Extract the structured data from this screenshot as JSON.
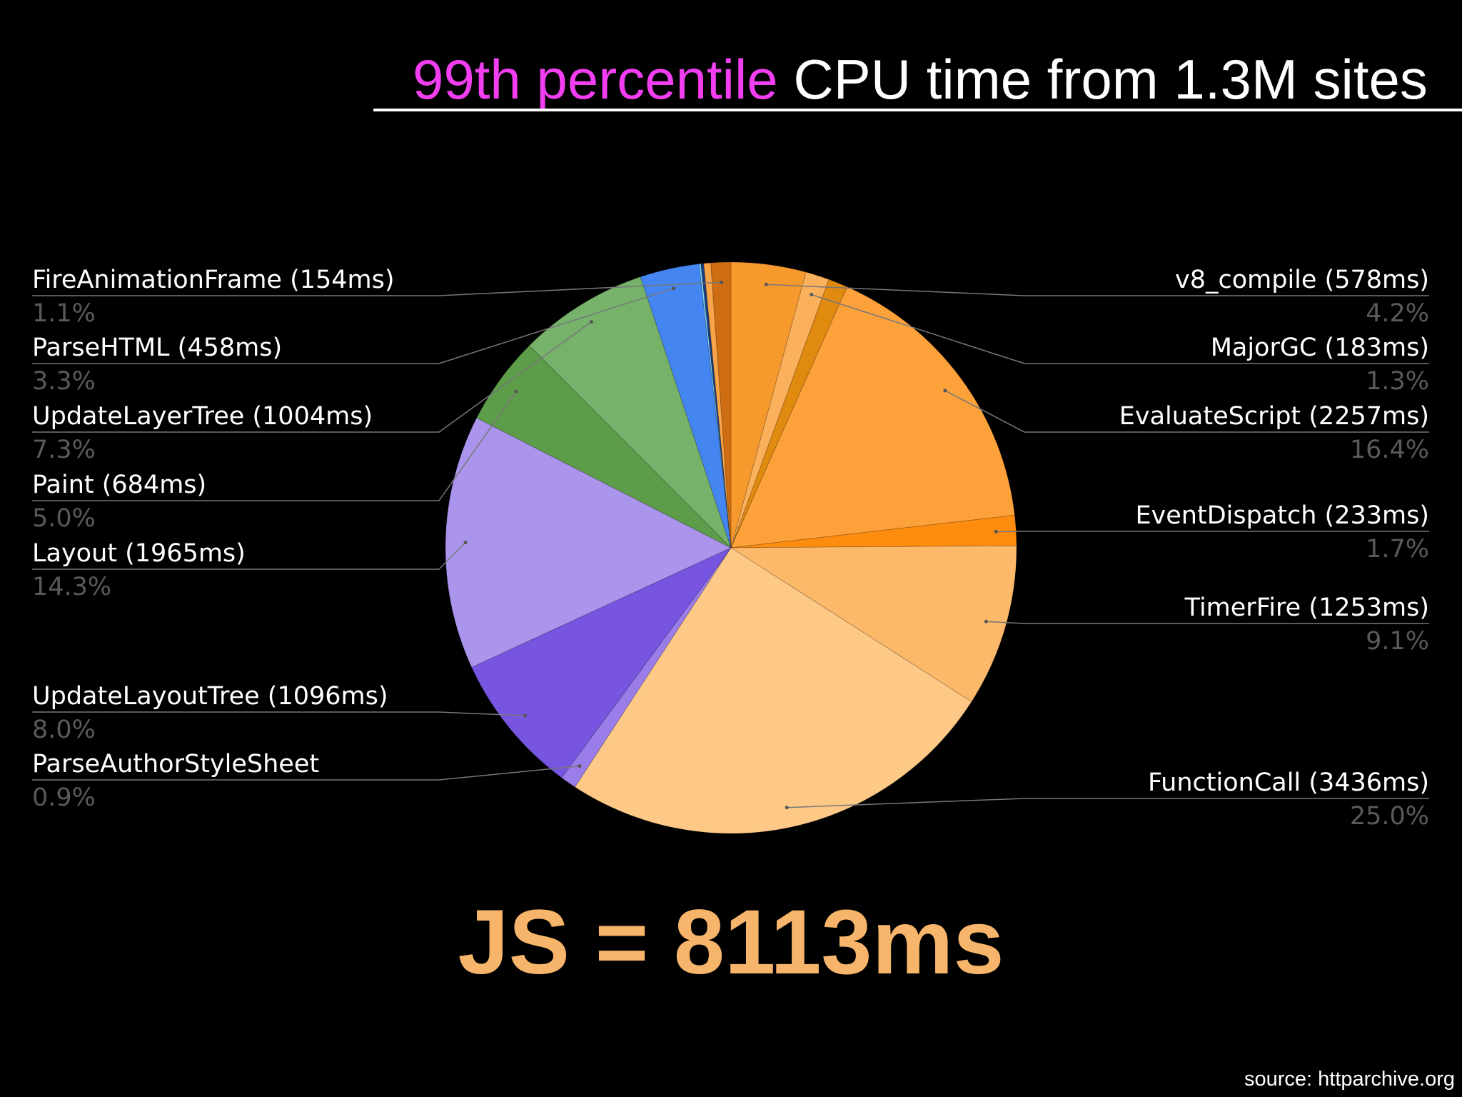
{
  "title": {
    "highlight": "99th percentile",
    "rest": " CPU time from 1.3M sites"
  },
  "chart_data": {
    "type": "pie",
    "slices": [
      {
        "label": "v8_compile (578ms)",
        "value": 578,
        "percent": "4.2%",
        "color": "#f79a2e",
        "side": "right"
      },
      {
        "label": "MajorGC (183ms)",
        "value": 183,
        "percent": "1.3%",
        "color": "#fbb15c",
        "side": "right"
      },
      {
        "label": "",
        "value": 150,
        "percent": "",
        "color": "#e08a10",
        "side": "none"
      },
      {
        "label": "EvaluateScript (2257ms)",
        "value": 2257,
        "percent": "16.4%",
        "color": "#fda23a",
        "side": "right"
      },
      {
        "label": "EventDispatch (233ms)",
        "value": 233,
        "percent": "1.7%",
        "color": "#fd8c0f",
        "side": "right"
      },
      {
        "label": "TimerFire (1253ms)",
        "value": 1253,
        "percent": "9.1%",
        "color": "#fdb96a",
        "side": "right"
      },
      {
        "label": "FunctionCall (3436ms)",
        "value": 3436,
        "percent": "25.0%",
        "color": "#fec987",
        "side": "right"
      },
      {
        "label": "ParseAuthorStyleSheet",
        "value": 124,
        "percent": "0.9%",
        "color": "#9a7de8",
        "side": "left"
      },
      {
        "label": "UpdateLayoutTree (1096ms)",
        "value": 1096,
        "percent": "8.0%",
        "color": "#7755e0",
        "side": "left"
      },
      {
        "label": "Layout (1965ms)",
        "value": 1965,
        "percent": "14.3%",
        "color": "#ab94ec",
        "side": "left"
      },
      {
        "label": "Paint (684ms)",
        "value": 684,
        "percent": "5.0%",
        "color": "#5d9c49",
        "side": "left"
      },
      {
        "label": "UpdateLayerTree (1004ms)",
        "value": 1004,
        "percent": "7.3%",
        "color": "#76b26a",
        "side": "left"
      },
      {
        "label": "ParseHTML (458ms)",
        "value": 458,
        "percent": "3.3%",
        "color": "#4485f1",
        "side": "left"
      },
      {
        "label": "",
        "value": 14,
        "percent": "",
        "color": "#7fd0f0",
        "side": "none"
      },
      {
        "label": "",
        "value": 22,
        "percent": "",
        "color": "#1e3d80",
        "side": "none"
      },
      {
        "label": "",
        "value": 54,
        "percent": "",
        "color": "#f9a547",
        "side": "none"
      },
      {
        "label": "FireAnimationFrame (154ms)",
        "value": 154,
        "percent": "1.1%",
        "color": "#cf6d12",
        "side": "left"
      }
    ]
  },
  "summary": "JS = 8113ms",
  "source": "source: httparchive.org"
}
